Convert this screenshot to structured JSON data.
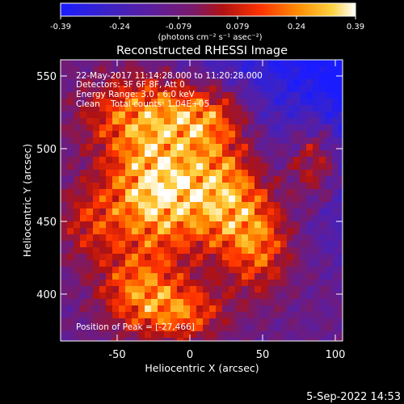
{
  "colorbar": {
    "ticks": [
      "-0.39",
      "-0.24",
      "-0.079",
      "0.079",
      "0.24",
      "0.39"
    ],
    "units_label": "(photons cm⁻² s⁻¹ asec⁻²)"
  },
  "image": {
    "title": "Reconstructed RHESSI Image",
    "info_lines": [
      "22-May-2017 11:14:28.000 to 11:20:28.000",
      "Detectors: 3F 6F 8F, Att 0",
      "Energy Range: 3.0 - 6.0 keV",
      "Clean    Total counts: 1.04E+05"
    ],
    "peak_label": "Position of Peak = [-27,466]",
    "x_axis_label": "Heliocentric X (arcsec)",
    "y_axis_label": "Heliocentric Y (arcsec)",
    "x_ticks": [
      "-50",
      "0",
      "50",
      "100"
    ],
    "y_ticks": [
      "550",
      "500",
      "450",
      "400"
    ],
    "x_range": [
      -90,
      100
    ],
    "y_range": [
      370,
      560
    ]
  },
  "footer": {
    "timestamp": "5-Sep-2022 14:53"
  },
  "colors": {
    "background": "#000000",
    "text": "#ffffff",
    "colormap": [
      "#1a1cff",
      "#3a22c8",
      "#5a1ea0",
      "#7a1a6a",
      "#b01212",
      "#ff3300",
      "#ff8a00",
      "#ffd240",
      "#ffffff"
    ]
  }
}
